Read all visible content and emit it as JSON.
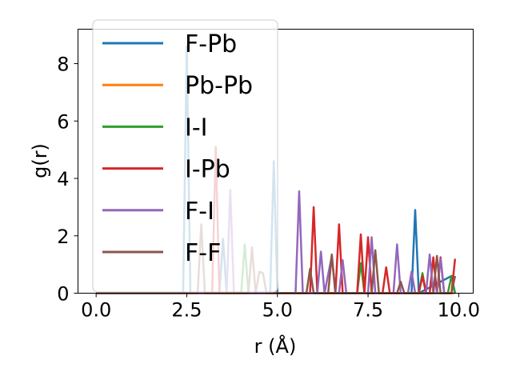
{
  "chart_data": {
    "type": "line",
    "xlabel": "r (Å)",
    "ylabel": "g(r)",
    "xlim": [
      -0.5,
      10.4
    ],
    "ylim": [
      0,
      9.2
    ],
    "xticks": [
      0.0,
      2.5,
      5.0,
      7.5,
      10.0
    ],
    "xtick_labels": [
      "0.0",
      "2.5",
      "5.0",
      "7.5",
      "10.0"
    ],
    "yticks": [
      0,
      2,
      4,
      6,
      8
    ],
    "ytick_labels": [
      "0",
      "2",
      "4",
      "6",
      "8"
    ],
    "grid": false,
    "legend_position": "upper-left",
    "series": [
      {
        "name": "F-Pb",
        "color": "#1f77b4",
        "x": [
          0,
          2.4,
          2.5,
          2.6,
          3.4,
          3.5,
          3.6,
          3.7,
          4.8,
          4.9,
          5.0,
          8.7,
          8.8,
          8.9,
          9.8,
          9.9
        ],
        "y": [
          0,
          0,
          8.6,
          0,
          0,
          1.9,
          0,
          0,
          0,
          4.6,
          0,
          0,
          2.9,
          0,
          0.6,
          0
        ]
      },
      {
        "name": "Pb-Pb",
        "color": "#ff7f0e",
        "x": [
          0,
          9.9
        ],
        "y": [
          0,
          0
        ]
      },
      {
        "name": "I-I",
        "color": "#2ca02c",
        "x": [
          0,
          4.0,
          4.1,
          4.2,
          7.2,
          7.3,
          7.4,
          8.9,
          9.0,
          9.1,
          9.7,
          9.8,
          9.9
        ],
        "y": [
          0,
          0,
          1.7,
          0,
          0,
          1.05,
          0,
          0,
          0.7,
          0,
          0,
          0.6,
          0
        ]
      },
      {
        "name": "I-Pb",
        "color": "#d62728",
        "x": [
          0,
          3.2,
          3.3,
          3.4,
          5.9,
          6.0,
          6.1,
          6.2,
          6.6,
          6.7,
          6.8,
          6.9,
          7.2,
          7.3,
          7.4,
          7.5,
          7.6,
          7.9,
          8.0,
          8.1,
          8.9,
          9.0,
          9.1,
          9.2,
          9.3,
          9.4,
          9.5,
          9.6,
          9.7,
          9.8,
          9.9
        ],
        "y": [
          0,
          0,
          5.1,
          0,
          0,
          3.0,
          0,
          0,
          0,
          2.4,
          0,
          0,
          0,
          2.05,
          0,
          1.95,
          0,
          0,
          0.9,
          0,
          0,
          0.6,
          0,
          0,
          1.25,
          0,
          1.25,
          0,
          0,
          0,
          1.2
        ]
      },
      {
        "name": "F-I",
        "color": "#9467bd",
        "x": [
          0,
          3.6,
          3.7,
          3.8,
          5.5,
          5.6,
          5.7,
          6.1,
          6.2,
          6.3,
          6.5,
          6.6,
          6.7,
          6.8,
          6.9,
          7.5,
          7.6,
          7.7,
          8.2,
          8.3,
          8.4,
          8.6,
          8.7,
          8.8,
          9.1,
          9.2,
          9.3,
          9.4,
          9.5,
          9.6,
          9.7
        ],
        "y": [
          0,
          0,
          3.6,
          0,
          0,
          3.55,
          0,
          0,
          1.45,
          0,
          1.3,
          0,
          0,
          1.15,
          0,
          0,
          1.95,
          0,
          0,
          1.7,
          0,
          0,
          0.75,
          0,
          0,
          1.35,
          0,
          0,
          1.2,
          0,
          0
        ]
      },
      {
        "name": "F-F",
        "color": "#8c564b",
        "x": [
          0,
          2.8,
          2.9,
          3.0,
          4.2,
          4.3,
          4.4,
          4.5,
          4.6,
          4.7,
          5.8,
          5.9,
          6.0,
          6.4,
          6.5,
          6.6,
          7.6,
          7.7,
          7.8,
          8.2,
          8.3,
          8.4,
          8.5,
          9.3,
          9.4,
          9.5,
          9.8,
          9.9
        ],
        "y": [
          0,
          0,
          2.4,
          0,
          0,
          1.6,
          0,
          0.75,
          0.7,
          0,
          0,
          0.85,
          0,
          0,
          1.35,
          0,
          0,
          1.5,
          0,
          0,
          0,
          0.4,
          0,
          0,
          1.3,
          0,
          0,
          0.6
        ]
      }
    ]
  }
}
